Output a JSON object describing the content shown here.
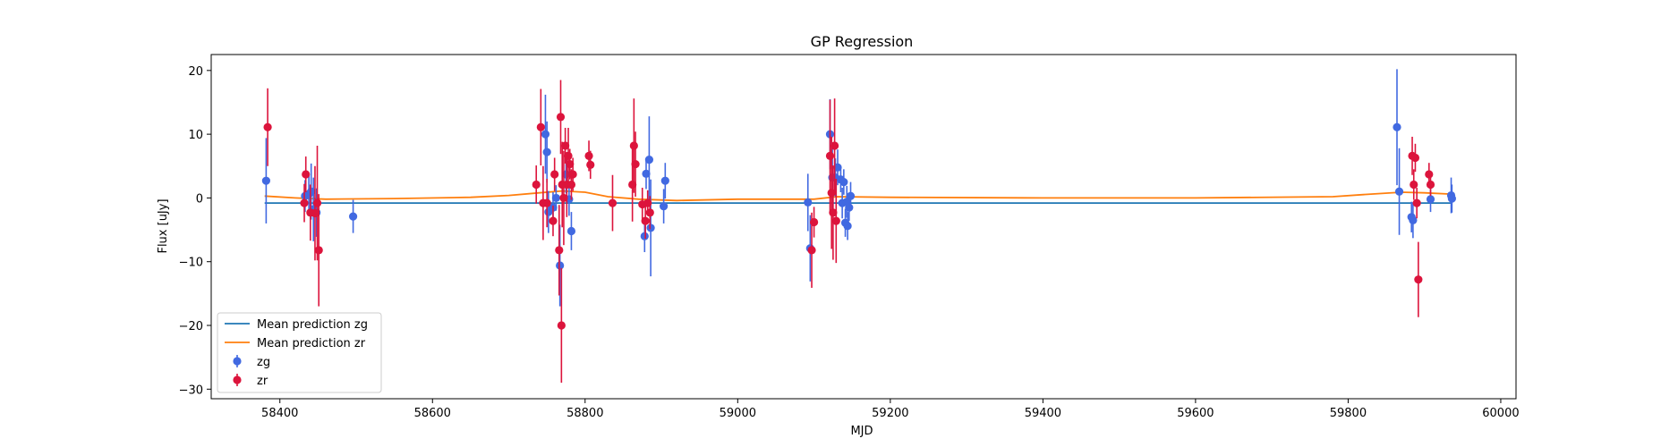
{
  "chart_data": {
    "type": "scatter",
    "title": "GP Regression",
    "xlabel": "MJD",
    "ylabel": "Flux [uJy]",
    "xlim": [
      58310,
      60020
    ],
    "ylim": [
      -31.5,
      22.5
    ],
    "xticks": [
      58400,
      58600,
      58800,
      59000,
      59200,
      59400,
      59600,
      59800,
      60000
    ],
    "yticks": [
      -30,
      -20,
      -10,
      0,
      10,
      20
    ],
    "legend_position": "lower-left",
    "colors": {
      "zg_line": "#1f77b4",
      "zr_line": "#ff7f0e",
      "zg_points": "#4169e1",
      "zr_points": "#dc143c"
    },
    "lines": [
      {
        "name": "Mean prediction zg",
        "x": [
          58380,
          59935
        ],
        "y": [
          -0.8,
          -0.8
        ]
      },
      {
        "name": "Mean prediction zr",
        "x": [
          58380,
          58420,
          58460,
          58550,
          58650,
          58700,
          58740,
          58770,
          58800,
          58830,
          58870,
          58920,
          59000,
          59100,
          59130,
          59200,
          59400,
          59600,
          59780,
          59830,
          59870,
          59900,
          59935
        ],
        "y": [
          0.3,
          0.0,
          -0.2,
          -0.1,
          0.1,
          0.4,
          0.8,
          1.1,
          0.9,
          0.2,
          -0.2,
          -0.4,
          -0.2,
          -0.2,
          0.2,
          0.1,
          0.0,
          0.0,
          0.2,
          0.6,
          0.9,
          0.8,
          0.6
        ]
      }
    ],
    "series": [
      {
        "name": "zg",
        "points": [
          {
            "x": 58382,
            "y": 2.7,
            "err": 6.7
          },
          {
            "x": 58433,
            "y": 0.3,
            "err": 2.5
          },
          {
            "x": 58438,
            "y": 0.6,
            "err": 3.2
          },
          {
            "x": 58441,
            "y": 1.0,
            "err": 4.4
          },
          {
            "x": 58444,
            "y": -1.8,
            "err": 5.0
          },
          {
            "x": 58448,
            "y": -2.3,
            "err": 3.8
          },
          {
            "x": 58496,
            "y": -2.9,
            "err": 2.6
          },
          {
            "x": 58748,
            "y": 10.0,
            "err": 6.2
          },
          {
            "x": 58750,
            "y": 7.2,
            "err": 4.8
          },
          {
            "x": 58752,
            "y": -2.2,
            "err": 3.3
          },
          {
            "x": 58758,
            "y": -1.5,
            "err": 2.4
          },
          {
            "x": 58762,
            "y": 0.0,
            "err": 2.0
          },
          {
            "x": 58767,
            "y": -10.6,
            "err": 6.4
          },
          {
            "x": 58775,
            "y": 3.7,
            "err": 3.0
          },
          {
            "x": 58779,
            "y": -0.2,
            "err": 2.6
          },
          {
            "x": 58782,
            "y": -5.2,
            "err": 3.0
          },
          {
            "x": 58878,
            "y": -6.0,
            "err": 2.5
          },
          {
            "x": 58880,
            "y": 3.8,
            "err": 2.4
          },
          {
            "x": 58884,
            "y": 6.0,
            "err": 6.8
          },
          {
            "x": 58886,
            "y": -4.7,
            "err": 7.6
          },
          {
            "x": 58903,
            "y": -1.3,
            "err": 2.7
          },
          {
            "x": 58905,
            "y": 2.7,
            "err": 2.8
          },
          {
            "x": 59092,
            "y": -0.7,
            "err": 4.5
          },
          {
            "x": 59095,
            "y": -7.9,
            "err": 5.2
          },
          {
            "x": 59121,
            "y": 10.0,
            "err": 5.5
          },
          {
            "x": 59124,
            "y": 3.2,
            "err": 5.5
          },
          {
            "x": 59128,
            "y": 3.2,
            "err": 3.0
          },
          {
            "x": 59131,
            "y": 4.8,
            "err": 2.8
          },
          {
            "x": 59135,
            "y": 2.9,
            "err": 2.0
          },
          {
            "x": 59137,
            "y": -0.8,
            "err": 2.4
          },
          {
            "x": 59139,
            "y": 2.5,
            "err": 2.0
          },
          {
            "x": 59141,
            "y": -3.9,
            "err": 2.2
          },
          {
            "x": 59143,
            "y": -0.6,
            "err": 2.5
          },
          {
            "x": 59144,
            "y": -4.4,
            "err": 2.2
          },
          {
            "x": 59146,
            "y": -1.5,
            "err": 2.1
          },
          {
            "x": 59148,
            "y": 0.3,
            "err": 2.2
          },
          {
            "x": 59864,
            "y": 11.1,
            "err": 9.1
          },
          {
            "x": 59867,
            "y": 1.0,
            "err": 6.8
          },
          {
            "x": 59883,
            "y": -3.0,
            "err": 2.4
          },
          {
            "x": 59885,
            "y": -3.5,
            "err": 2.8
          },
          {
            "x": 59908,
            "y": -0.2,
            "err": 2.0
          },
          {
            "x": 59935,
            "y": 0.4,
            "err": 2.8
          },
          {
            "x": 59936,
            "y": -0.1,
            "err": 2.2
          }
        ]
      },
      {
        "name": "zr",
        "points": [
          {
            "x": 58384,
            "y": 11.1,
            "err": 6.1
          },
          {
            "x": 58432,
            "y": -0.8,
            "err": 3.0
          },
          {
            "x": 58434,
            "y": 3.7,
            "err": 2.8
          },
          {
            "x": 58440,
            "y": -2.3,
            "err": 4.4
          },
          {
            "x": 58446,
            "y": -2.4,
            "err": 7.4
          },
          {
            "x": 58449,
            "y": -0.8,
            "err": 9.0
          },
          {
            "x": 58451,
            "y": -8.2,
            "err": 8.8
          },
          {
            "x": 58736,
            "y": 2.1,
            "err": 3.0
          },
          {
            "x": 58742,
            "y": 11.1,
            "err": 6.0
          },
          {
            "x": 58745,
            "y": -0.8,
            "err": 5.8
          },
          {
            "x": 58750,
            "y": -0.8,
            "err": 3.8
          },
          {
            "x": 58758,
            "y": -3.6,
            "err": 2.4
          },
          {
            "x": 58760,
            "y": 3.7,
            "err": 2.6
          },
          {
            "x": 58766,
            "y": -8.2,
            "err": 7.1
          },
          {
            "x": 58768,
            "y": 12.7,
            "err": 5.8
          },
          {
            "x": 58769,
            "y": -20.0,
            "err": 9.0
          },
          {
            "x": 58770,
            "y": 2.1,
            "err": 6.7
          },
          {
            "x": 58772,
            "y": 0.0,
            "err": 7.4
          },
          {
            "x": 58774,
            "y": 8.2,
            "err": 2.8
          },
          {
            "x": 58776,
            "y": 2.1,
            "err": 5.1
          },
          {
            "x": 58778,
            "y": 6.6,
            "err": 4.4
          },
          {
            "x": 58780,
            "y": 5.3,
            "err": 2.4
          },
          {
            "x": 58782,
            "y": 2.1,
            "err": 2.4
          },
          {
            "x": 58784,
            "y": 3.7,
            "err": 2.6
          },
          {
            "x": 58805,
            "y": 6.6,
            "err": 2.4
          },
          {
            "x": 58807,
            "y": 5.2,
            "err": 2.2
          },
          {
            "x": 58836,
            "y": -0.8,
            "err": 4.4
          },
          {
            "x": 58862,
            "y": 2.1,
            "err": 5.8
          },
          {
            "x": 58864,
            "y": 8.2,
            "err": 7.4
          },
          {
            "x": 58866,
            "y": 5.3,
            "err": 5.1
          },
          {
            "x": 58875,
            "y": -1.0,
            "err": 2.6
          },
          {
            "x": 58879,
            "y": -3.6,
            "err": 2.8
          },
          {
            "x": 58882,
            "y": -0.8,
            "err": 2.0
          },
          {
            "x": 58885,
            "y": -2.3,
            "err": 2.6
          },
          {
            "x": 59121,
            "y": 6.6,
            "err": 8.8
          },
          {
            "x": 59123,
            "y": 0.8,
            "err": 8.8
          },
          {
            "x": 59125,
            "y": -2.3,
            "err": 7.4
          },
          {
            "x": 59127,
            "y": 8.2,
            "err": 7.4
          },
          {
            "x": 59129,
            "y": -3.6,
            "err": 6.6
          },
          {
            "x": 59097,
            "y": -8.2,
            "err": 5.9
          },
          {
            "x": 59100,
            "y": -3.8,
            "err": 2.4
          },
          {
            "x": 59884,
            "y": 6.6,
            "err": 3.0
          },
          {
            "x": 59886,
            "y": 2.1,
            "err": 2.4
          },
          {
            "x": 59888,
            "y": 6.3,
            "err": 2.2
          },
          {
            "x": 59890,
            "y": -0.8,
            "err": 2.4
          },
          {
            "x": 59892,
            "y": -12.8,
            "err": 5.9
          },
          {
            "x": 59906,
            "y": 3.7,
            "err": 1.8
          },
          {
            "x": 59908,
            "y": 2.1,
            "err": 1.8
          }
        ]
      }
    ]
  }
}
